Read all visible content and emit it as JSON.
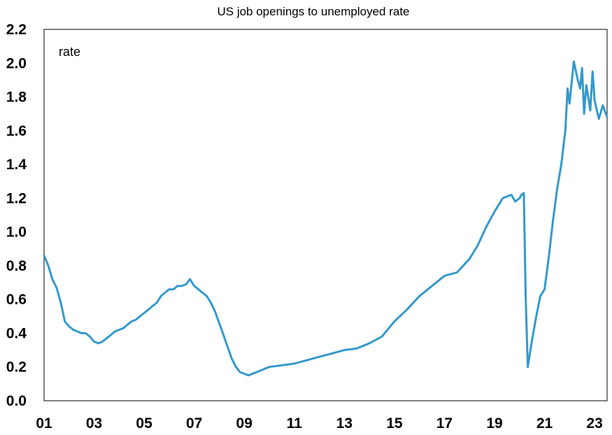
{
  "chart_data": {
    "type": "line",
    "title": "US job openings to unemployed rate",
    "annotation": "rate",
    "xlabel": "",
    "ylabel": "",
    "x_tick_labels": [
      "01",
      "03",
      "05",
      "07",
      "09",
      "11",
      "13",
      "15",
      "17",
      "19",
      "21",
      "23"
    ],
    "y_tick_labels": [
      "0.0",
      "0.2",
      "0.4",
      "0.6",
      "0.8",
      "1.0",
      "1.2",
      "1.4",
      "1.6",
      "1.8",
      "2.0",
      "2.2"
    ],
    "ylim": [
      0,
      2.2
    ],
    "xlim": [
      2001.0,
      2023.5
    ],
    "grid": false,
    "line_color": "#3399CC",
    "series": [
      {
        "x": [
          2001.0,
          2001.17,
          2001.33,
          2001.5,
          2001.67,
          2001.83,
          2002.0,
          2002.17,
          2002.33,
          2002.5,
          2002.67,
          2002.83,
          2003.0,
          2003.17,
          2003.33,
          2003.5,
          2003.67,
          2003.83,
          2004.0,
          2004.17,
          2004.33,
          2004.5,
          2004.67,
          2004.83,
          2005.0,
          2005.17,
          2005.33,
          2005.5,
          2005.67,
          2005.83,
          2006.0,
          2006.17,
          2006.33,
          2006.5,
          2006.67,
          2006.83,
          2007.0,
          2007.17,
          2007.33,
          2007.5,
          2007.67,
          2007.83,
          2008.0,
          2008.17,
          2008.33,
          2008.5,
          2008.67,
          2008.83,
          2009.0,
          2009.17,
          2009.33,
          2009.5,
          2009.67,
          2009.83,
          2010.0,
          2010.5,
          2011.0,
          2011.5,
          2012.0,
          2012.5,
          2013.0,
          2013.5,
          2014.0,
          2014.5,
          2015.0,
          2015.5,
          2016.0,
          2016.5,
          2017.0,
          2017.5,
          2018.0,
          2018.33,
          2018.67,
          2019.0,
          2019.33,
          2019.67,
          2019.83,
          2020.0,
          2020.08,
          2020.17,
          2020.25,
          2020.33,
          2020.5,
          2020.67,
          2020.83,
          2021.0,
          2021.17,
          2021.33,
          2021.5,
          2021.67,
          2021.83,
          2021.92,
          2022.0,
          2022.17,
          2022.33,
          2022.42,
          2022.5,
          2022.58,
          2022.67,
          2022.83,
          2022.92,
          2023.0,
          2023.17,
          2023.33,
          2023.5
        ],
        "values": [
          0.86,
          0.8,
          0.72,
          0.67,
          0.58,
          0.47,
          0.44,
          0.42,
          0.41,
          0.4,
          0.4,
          0.38,
          0.35,
          0.34,
          0.35,
          0.37,
          0.39,
          0.41,
          0.42,
          0.43,
          0.45,
          0.47,
          0.48,
          0.5,
          0.52,
          0.54,
          0.56,
          0.58,
          0.62,
          0.64,
          0.66,
          0.66,
          0.68,
          0.68,
          0.69,
          0.72,
          0.68,
          0.66,
          0.64,
          0.62,
          0.58,
          0.53,
          0.46,
          0.39,
          0.32,
          0.25,
          0.2,
          0.17,
          0.16,
          0.15,
          0.16,
          0.17,
          0.18,
          0.19,
          0.2,
          0.21,
          0.22,
          0.24,
          0.26,
          0.28,
          0.3,
          0.31,
          0.34,
          0.38,
          0.47,
          0.54,
          0.62,
          0.68,
          0.74,
          0.76,
          0.84,
          0.92,
          1.03,
          1.12,
          1.2,
          1.22,
          1.18,
          1.2,
          1.22,
          1.23,
          0.6,
          0.2,
          0.36,
          0.5,
          0.62,
          0.66,
          0.85,
          1.06,
          1.25,
          1.4,
          1.6,
          1.85,
          1.76,
          2.01,
          1.9,
          1.85,
          1.97,
          1.7,
          1.87,
          1.72,
          1.95,
          1.78,
          1.67,
          1.75,
          1.68
        ]
      }
    ]
  }
}
